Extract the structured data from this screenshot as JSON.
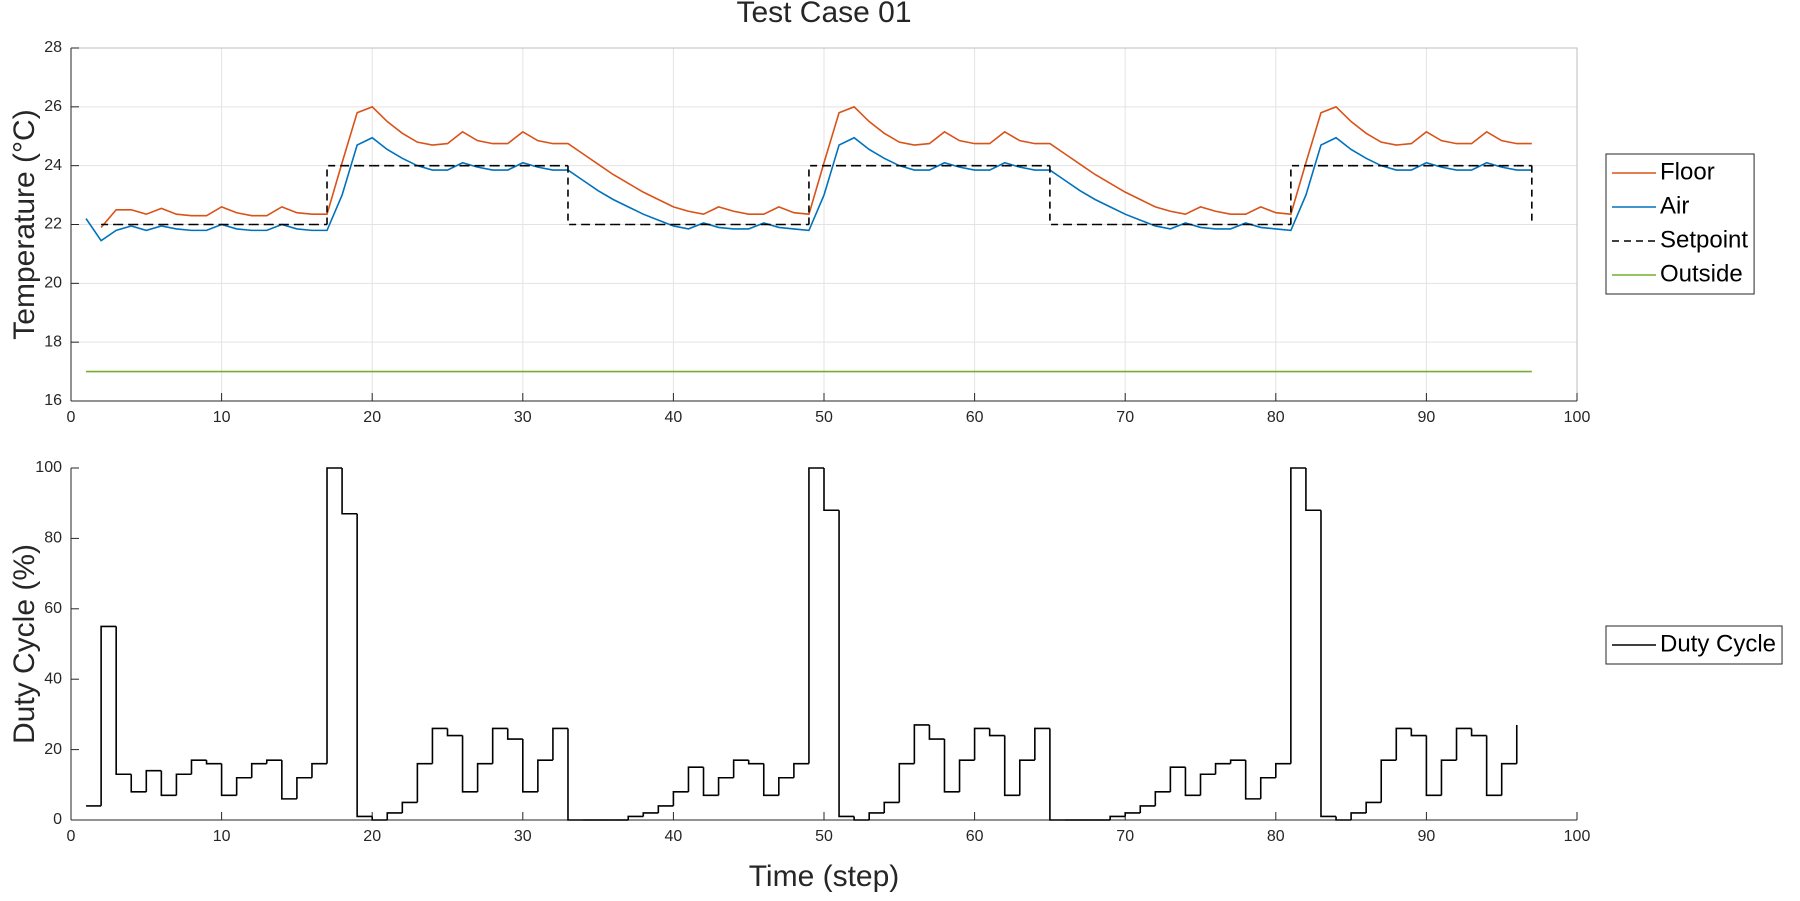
{
  "chart_data": [
    {
      "type": "line",
      "title": "Test Case 01",
      "ylabel": "Temperature (°C)",
      "x": [
        1,
        2,
        3,
        4,
        5,
        6,
        7,
        8,
        9,
        10,
        11,
        12,
        13,
        14,
        15,
        16,
        17,
        18,
        19,
        20,
        21,
        22,
        23,
        24,
        25,
        26,
        27,
        28,
        29,
        30,
        31,
        32,
        33,
        34,
        35,
        36,
        37,
        38,
        39,
        40,
        41,
        42,
        43,
        44,
        45,
        46,
        47,
        48,
        49,
        50,
        51,
        52,
        53,
        54,
        55,
        56,
        57,
        58,
        59,
        60,
        61,
        62,
        63,
        64,
        65,
        66,
        67,
        68,
        69,
        70,
        71,
        72,
        73,
        74,
        75,
        76,
        77,
        78,
        79,
        80,
        81,
        82,
        83,
        84,
        85,
        86,
        87,
        88,
        89,
        90,
        91,
        92,
        93,
        94,
        95,
        96,
        97
      ],
      "series": [
        {
          "name": "Floor",
          "color": "#D95319",
          "values": [
            null,
            21.9,
            22.5,
            22.5,
            22.35,
            22.55,
            22.35,
            22.3,
            22.3,
            22.6,
            22.4,
            22.3,
            22.3,
            22.6,
            22.4,
            22.35,
            22.35,
            24.1,
            25.8,
            26.0,
            25.5,
            25.1,
            24.8,
            24.7,
            24.75,
            25.15,
            24.85,
            24.75,
            24.75,
            25.15,
            24.85,
            24.75,
            24.75,
            24.4,
            24.05,
            23.7,
            23.4,
            23.1,
            22.85,
            22.6,
            22.45,
            22.35,
            22.6,
            22.45,
            22.35,
            22.35,
            22.6,
            22.4,
            22.35,
            24.1,
            25.8,
            26.0,
            25.5,
            25.1,
            24.8,
            24.7,
            24.75,
            25.15,
            24.85,
            24.75,
            24.75,
            25.15,
            24.85,
            24.75,
            24.75,
            24.4,
            24.05,
            23.7,
            23.4,
            23.1,
            22.85,
            22.6,
            22.45,
            22.35,
            22.6,
            22.45,
            22.35,
            22.35,
            22.6,
            22.4,
            22.35,
            24.1,
            25.8,
            26.0,
            25.5,
            25.1,
            24.8,
            24.7,
            24.75,
            25.15,
            24.85,
            24.75,
            24.75,
            25.15,
            24.85,
            24.75,
            24.75
          ]
        },
        {
          "name": "Air",
          "color": "#0072BD",
          "values": [
            22.2,
            21.45,
            21.8,
            21.95,
            21.8,
            21.95,
            21.85,
            21.8,
            21.8,
            22.0,
            21.85,
            21.8,
            21.8,
            22.0,
            21.85,
            21.8,
            21.8,
            23.0,
            24.7,
            24.95,
            24.55,
            24.25,
            24.0,
            23.85,
            23.85,
            24.1,
            23.95,
            23.85,
            23.85,
            24.1,
            23.95,
            23.85,
            23.85,
            23.5,
            23.15,
            22.85,
            22.6,
            22.35,
            22.15,
            21.95,
            21.85,
            22.05,
            21.9,
            21.85,
            21.85,
            22.05,
            21.9,
            21.85,
            21.8,
            23.0,
            24.7,
            24.95,
            24.55,
            24.25,
            24.0,
            23.85,
            23.85,
            24.1,
            23.95,
            23.85,
            23.85,
            24.1,
            23.95,
            23.85,
            23.85,
            23.5,
            23.15,
            22.85,
            22.6,
            22.35,
            22.15,
            21.95,
            21.85,
            22.05,
            21.9,
            21.85,
            21.85,
            22.05,
            21.9,
            21.85,
            21.8,
            23.0,
            24.7,
            24.95,
            24.55,
            24.25,
            24.0,
            23.85,
            23.85,
            24.1,
            23.95,
            23.85,
            23.85,
            24.1,
            23.95,
            23.85,
            23.85
          ]
        },
        {
          "name": "Setpoint",
          "color": "#000000",
          "dash": true,
          "step": "post",
          "values": [
            null,
            22,
            22,
            22,
            22,
            22,
            22,
            22,
            22,
            22,
            22,
            22,
            22,
            22,
            22,
            22,
            24,
            24,
            24,
            24,
            24,
            24,
            24,
            24,
            24,
            24,
            24,
            24,
            24,
            24,
            24,
            24,
            22,
            22,
            22,
            22,
            22,
            22,
            22,
            22,
            22,
            22,
            22,
            22,
            22,
            22,
            22,
            22,
            24,
            24,
            24,
            24,
            24,
            24,
            24,
            24,
            24,
            24,
            24,
            24,
            24,
            24,
            24,
            24,
            22,
            22,
            22,
            22,
            22,
            22,
            22,
            22,
            22,
            22,
            22,
            22,
            22,
            22,
            22,
            22,
            24,
            24,
            24,
            24,
            24,
            24,
            24,
            24,
            24,
            24,
            24,
            24,
            24,
            24,
            24,
            24,
            22
          ]
        },
        {
          "name": "Outside",
          "color": "#77AC30",
          "values": [
            17,
            17,
            17,
            17,
            17,
            17,
            17,
            17,
            17,
            17,
            17,
            17,
            17,
            17,
            17,
            17,
            17,
            17,
            17,
            17,
            17,
            17,
            17,
            17,
            17,
            17,
            17,
            17,
            17,
            17,
            17,
            17,
            17,
            17,
            17,
            17,
            17,
            17,
            17,
            17,
            17,
            17,
            17,
            17,
            17,
            17,
            17,
            17,
            17,
            17,
            17,
            17,
            17,
            17,
            17,
            17,
            17,
            17,
            17,
            17,
            17,
            17,
            17,
            17,
            17,
            17,
            17,
            17,
            17,
            17,
            17,
            17,
            17,
            17,
            17,
            17,
            17,
            17,
            17,
            17,
            17,
            17,
            17,
            17,
            17,
            17,
            17,
            17,
            17,
            17,
            17,
            17,
            17,
            17,
            17,
            17,
            17
          ]
        }
      ],
      "xlim": [
        0,
        100
      ],
      "xticks": [
        0,
        10,
        20,
        30,
        40,
        50,
        60,
        70,
        80,
        90,
        100
      ],
      "ylim": [
        16,
        28
      ],
      "yticks": [
        16,
        18,
        20,
        22,
        24,
        26,
        28
      ],
      "grid": true,
      "legend": "outside-right"
    },
    {
      "type": "line",
      "ylabel": "Duty Cycle (%)",
      "xlabel": "Time (step)",
      "x": [
        1,
        2,
        3,
        4,
        5,
        6,
        7,
        8,
        9,
        10,
        11,
        12,
        13,
        14,
        15,
        16,
        17,
        18,
        19,
        20,
        21,
        22,
        23,
        24,
        25,
        26,
        27,
        28,
        29,
        30,
        31,
        32,
        33,
        34,
        35,
        36,
        37,
        38,
        39,
        40,
        41,
        42,
        43,
        44,
        45,
        46,
        47,
        48,
        49,
        50,
        51,
        52,
        53,
        54,
        55,
        56,
        57,
        58,
        59,
        60,
        61,
        62,
        63,
        64,
        65,
        66,
        67,
        68,
        69,
        70,
        71,
        72,
        73,
        74,
        75,
        76,
        77,
        78,
        79,
        80,
        81,
        82,
        83,
        84,
        85,
        86,
        87,
        88,
        89,
        90,
        91,
        92,
        93,
        94,
        95,
        96
      ],
      "series": [
        {
          "name": "Duty Cycle",
          "color": "#000000",
          "step": "post",
          "values": [
            4,
            55,
            13,
            8,
            14,
            7,
            13,
            17,
            16,
            7,
            12,
            16,
            17,
            6,
            12,
            16,
            100,
            87,
            1,
            0,
            2,
            5,
            16,
            26,
            24,
            8,
            16,
            26,
            23,
            8,
            17,
            26,
            0,
            0,
            0,
            0,
            1,
            2,
            4,
            8,
            15,
            7,
            12,
            17,
            16,
            7,
            12,
            16,
            100,
            88,
            1,
            0,
            2,
            5,
            16,
            27,
            23,
            8,
            17,
            26,
            24,
            7,
            17,
            26,
            0,
            0,
            0,
            0,
            1,
            2,
            4,
            8,
            15,
            7,
            13,
            16,
            17,
            6,
            12,
            16,
            100,
            88,
            1,
            0,
            2,
            5,
            17,
            26,
            24,
            7,
            17,
            26,
            24,
            7,
            16,
            27
          ]
        }
      ],
      "xlim": [
        0,
        100
      ],
      "xticks": [
        0,
        10,
        20,
        30,
        40,
        50,
        60,
        70,
        80,
        90,
        100
      ],
      "ylim": [
        0,
        100
      ],
      "yticks": [
        0,
        20,
        40,
        60,
        80,
        100
      ],
      "grid": false,
      "legend": "outside-right"
    }
  ]
}
